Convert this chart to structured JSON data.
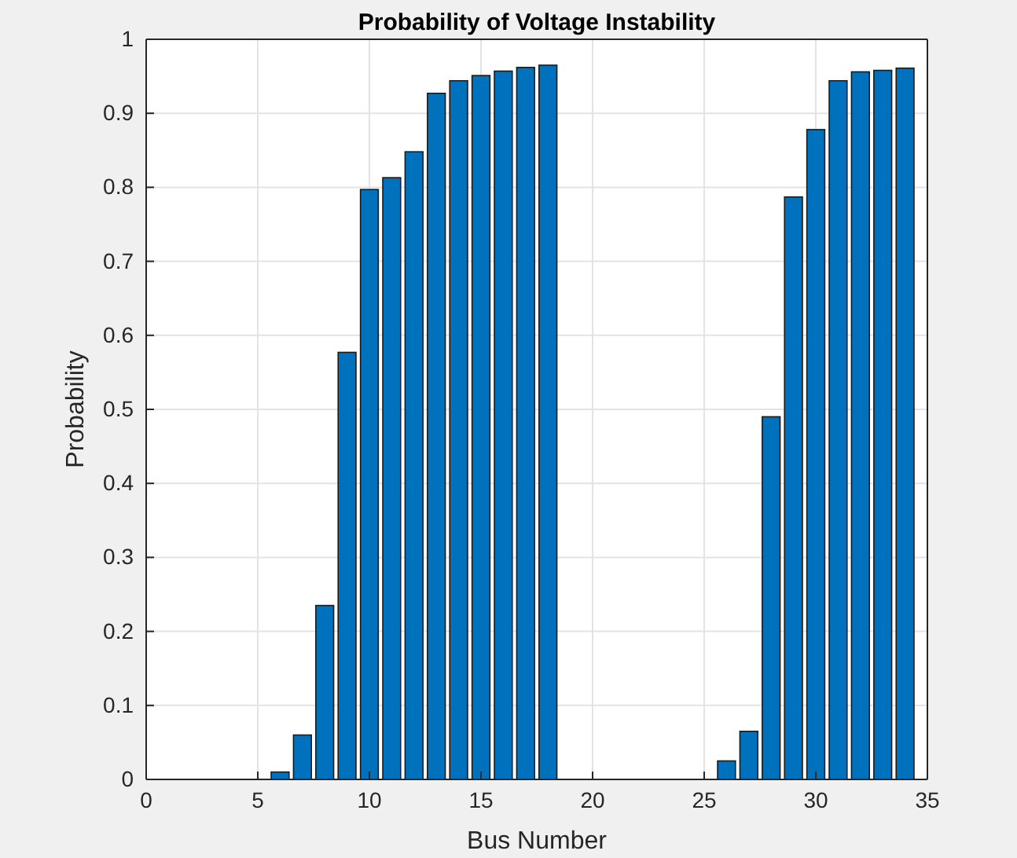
{
  "chart_data": {
    "type": "bar",
    "title": "Probability of Voltage Instability",
    "xlabel": "Bus Number",
    "ylabel": "Probability",
    "x": [
      1,
      2,
      3,
      4,
      5,
      6,
      7,
      8,
      9,
      10,
      11,
      12,
      13,
      14,
      15,
      16,
      17,
      18,
      19,
      20,
      21,
      22,
      23,
      24,
      25,
      26,
      27,
      28,
      29,
      30,
      31,
      32,
      33,
      34
    ],
    "values": [
      0,
      0,
      0,
      0,
      0,
      0.01,
      0.06,
      0.235,
      0.577,
      0.797,
      0.813,
      0.848,
      0.927,
      0.944,
      0.951,
      0.957,
      0.962,
      0.965,
      0,
      0,
      0,
      0,
      0,
      0,
      0,
      0.025,
      0.065,
      0.49,
      0.787,
      0.878,
      0.944,
      0.956,
      0.958,
      0.961
    ],
    "color": "#0072bd",
    "xlim": [
      0,
      35
    ],
    "xticks": [
      0,
      5,
      10,
      15,
      20,
      25,
      30,
      35
    ],
    "ylim": [
      0,
      1
    ],
    "yticks": [
      0,
      0.1,
      0.2,
      0.3,
      0.4,
      0.5,
      0.6,
      0.7,
      0.8,
      0.9,
      1
    ],
    "grid": true
  }
}
